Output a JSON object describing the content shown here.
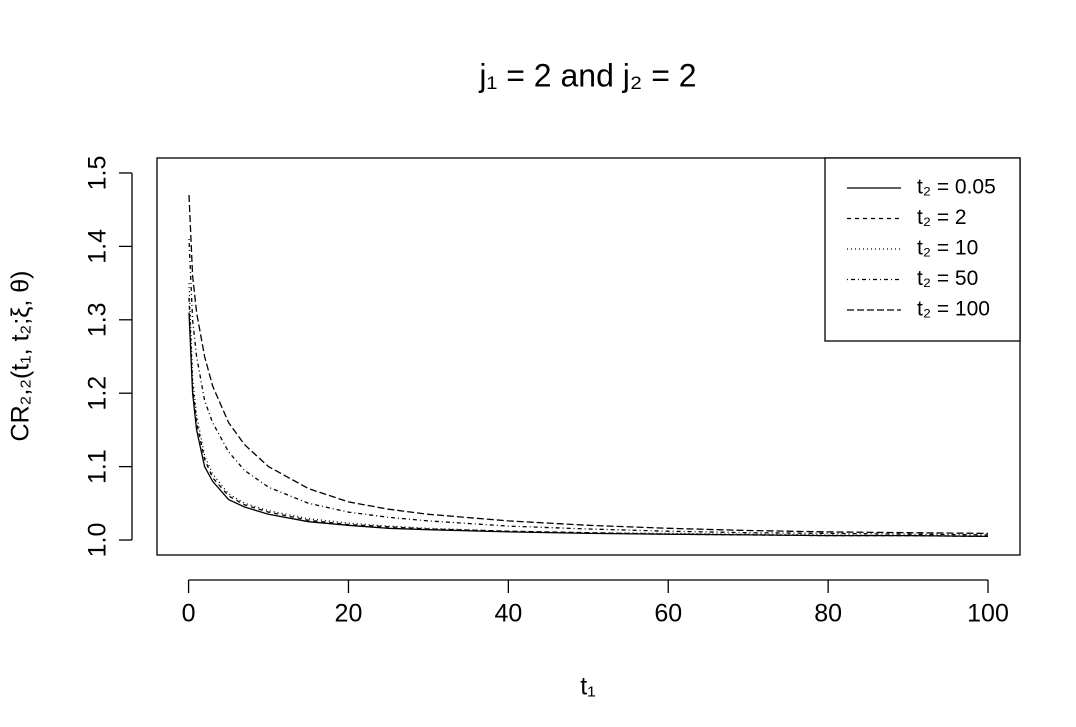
{
  "chart_data": {
    "type": "line",
    "title": "j₁ = 2 and j₂ = 2",
    "x_label": "t₁",
    "y_label": "CR₂,₂(t₁, t₂;ξ, θ)",
    "x": [
      0.05,
      0.5,
      1,
      2,
      3,
      5,
      7,
      10,
      15,
      20,
      25,
      30,
      40,
      50,
      60,
      70,
      80,
      90,
      100
    ],
    "series": [
      {
        "name": "t₂ = 0.05",
        "color": "#000000",
        "dash": "none",
        "values": [
          1.31,
          1.2,
          1.15,
          1.1,
          1.08,
          1.055,
          1.045,
          1.035,
          1.025,
          1.02,
          1.016,
          1.014,
          1.011,
          1.009,
          1.008,
          1.007,
          1.006,
          1.006,
          1.005
        ]
      },
      {
        "name": "t₂ = 2",
        "color": "#000000",
        "dash": "4 4",
        "values": [
          1.33,
          1.21,
          1.16,
          1.11,
          1.085,
          1.06,
          1.048,
          1.038,
          1.027,
          1.021,
          1.018,
          1.015,
          1.012,
          1.01,
          1.008,
          1.007,
          1.006,
          1.006,
          1.005
        ]
      },
      {
        "name": "t₂ = 10",
        "color": "#000000",
        "dash": "1 3",
        "values": [
          1.35,
          1.22,
          1.17,
          1.115,
          1.09,
          1.063,
          1.05,
          1.04,
          1.029,
          1.023,
          1.019,
          1.016,
          1.012,
          1.01,
          1.009,
          1.008,
          1.007,
          1.006,
          1.005
        ]
      },
      {
        "name": "t₂ = 50",
        "color": "#000000",
        "dash": "1 3 4 3",
        "values": [
          1.41,
          1.3,
          1.25,
          1.19,
          1.16,
          1.12,
          1.095,
          1.072,
          1.05,
          1.038,
          1.031,
          1.026,
          1.019,
          1.015,
          1.012,
          1.01,
          1.009,
          1.008,
          1.007
        ]
      },
      {
        "name": "t₂ = 100",
        "color": "#000000",
        "dash": "7 3",
        "values": [
          1.47,
          1.36,
          1.31,
          1.25,
          1.21,
          1.16,
          1.13,
          1.1,
          1.07,
          1.052,
          1.042,
          1.035,
          1.026,
          1.02,
          1.016,
          1.013,
          1.011,
          1.01,
          1.009
        ]
      }
    ],
    "xlim": [
      -3.95,
      104
    ],
    "ylim": [
      0.9796,
      1.5204
    ],
    "xticks": [
      0,
      20,
      40,
      60,
      80,
      100
    ],
    "yticks": [
      {
        "value": 1,
        "label": "1.0"
      },
      1.1,
      1.2,
      1.3,
      1.4,
      1.5
    ],
    "legend": "topright",
    "grid": false
  }
}
